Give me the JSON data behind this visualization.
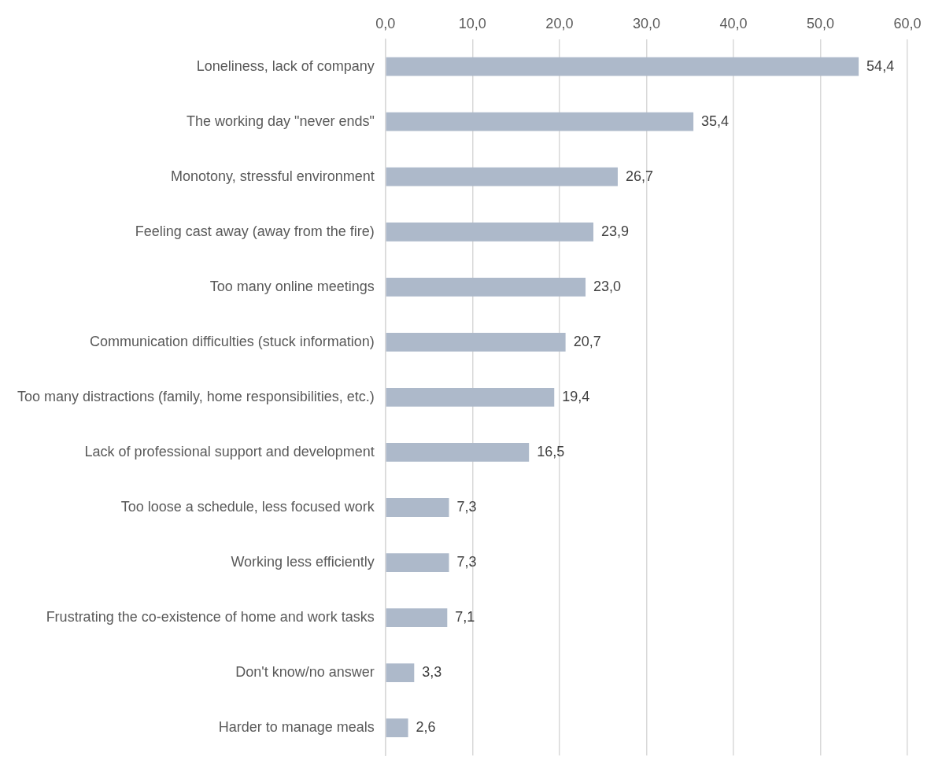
{
  "chart_data": {
    "type": "bar",
    "orientation": "horizontal",
    "categories": [
      "Loneliness, lack of company",
      "The working day \"never ends\"",
      "Monotony, stressful environment",
      "Feeling cast away (away from the fire)",
      "Too many online meetings",
      "Communication difficulties (stuck information)",
      "Too many distractions (family, home responsibilities, etc.)",
      "Lack of professional support and development",
      "Too loose a schedule, less focused work",
      "Working less efficiently",
      "Frustrating the co-existence of home and work tasks",
      "Don't know/no answer",
      "Harder to manage meals"
    ],
    "values": [
      54.4,
      35.4,
      26.7,
      23.9,
      23.0,
      20.7,
      19.4,
      16.5,
      7.3,
      7.3,
      7.1,
      3.3,
      2.6
    ],
    "value_labels": [
      "54,4",
      "35,4",
      "26,7",
      "23,9",
      "23,0",
      "20,7",
      "19,4",
      "16,5",
      "7,3",
      "7,3",
      "7,1",
      "3,3",
      "2,6"
    ],
    "color": "#adb9ca",
    "xlim": [
      0,
      60
    ],
    "xticks": [
      {
        "value": 0,
        "label": "0,0"
      },
      {
        "value": 10,
        "label": "10,0"
      },
      {
        "value": 20,
        "label": "20,0"
      },
      {
        "value": 30,
        "label": "30,0"
      },
      {
        "value": 40,
        "label": "40,0"
      },
      {
        "value": 50,
        "label": "50,0"
      },
      {
        "value": 60,
        "label": "60,0"
      }
    ],
    "grid": "x",
    "legend": false
  }
}
